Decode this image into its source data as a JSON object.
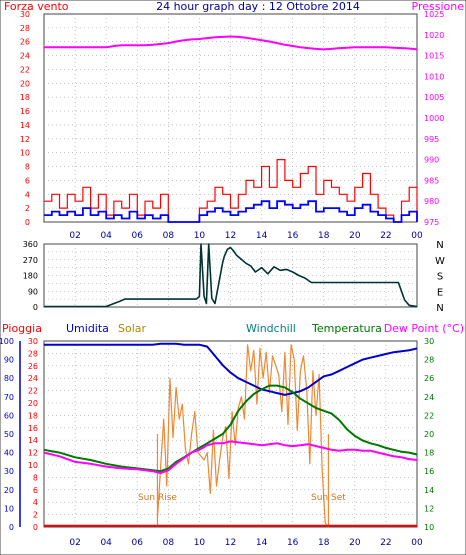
{
  "title": "24 hour graph day : 12 Ottobre 2014",
  "colors": {
    "wind": "#ff0000",
    "wind_avg": "#0000ff",
    "pressure": "#ff00ff",
    "direction": "#003333",
    "rain": "#ff0000",
    "humidity": "#0000cc",
    "solar": "#ee8833",
    "windchill": "#008080",
    "temperature": "#007700",
    "dewpoint": "#ff00ff",
    "grid": "#9aa0a0",
    "axis_labels": "#000099"
  },
  "x_ticks": [
    "02",
    "04",
    "06",
    "08",
    "10",
    "12",
    "14",
    "16",
    "18",
    "20",
    "22",
    "00"
  ],
  "chart_data": [
    {
      "type": "line",
      "name": "wind-pressure",
      "left_axis": {
        "label": "Forza vento",
        "min": 0,
        "max": 30,
        "ticks": [
          0,
          2,
          4,
          6,
          8,
          10,
          12,
          14,
          16,
          18,
          20,
          22,
          24,
          26,
          28,
          30
        ]
      },
      "right_axis": {
        "label": "Pressione",
        "min": 975,
        "max": 1025,
        "ticks": [
          975,
          980,
          985,
          990,
          995,
          1000,
          1005,
          1010,
          1015,
          1020,
          1025
        ]
      },
      "x": [
        0,
        0.5,
        1,
        1.5,
        2,
        2.5,
        3,
        3.5,
        4,
        4.5,
        5,
        5.5,
        6,
        6.5,
        7,
        7.5,
        8,
        8.5,
        9,
        9.5,
        10,
        10.5,
        11,
        11.5,
        12,
        12.5,
        13,
        13.5,
        14,
        14.5,
        15,
        15.5,
        16,
        16.5,
        17,
        17.5,
        18,
        18.5,
        19,
        19.5,
        20,
        20.5,
        21,
        21.5,
        22,
        22.5,
        23,
        23.5,
        24
      ],
      "series": [
        {
          "axis": "left",
          "color_key": "wind",
          "values": [
            3,
            4,
            2,
            4,
            3,
            5,
            2,
            4,
            1,
            3,
            2,
            4,
            1,
            3,
            2,
            4,
            0,
            0,
            0,
            0,
            2,
            3,
            5,
            4,
            2,
            4,
            6,
            5,
            8,
            5,
            9,
            6,
            5,
            7,
            8,
            4,
            6,
            5,
            4,
            3,
            5,
            7,
            4,
            2,
            1,
            0,
            3,
            5,
            0
          ]
        },
        {
          "axis": "left",
          "color_key": "wind_avg",
          "values": [
            1,
            1.5,
            1,
            1.5,
            1,
            2,
            1,
            1.5,
            0.5,
            1,
            0.5,
            1.5,
            0.5,
            1,
            0.5,
            1,
            0,
            0,
            0,
            0,
            1,
            1.5,
            2,
            1.5,
            1,
            1.5,
            2,
            2.5,
            3,
            2,
            3,
            2.5,
            2,
            2.5,
            3,
            1.5,
            2,
            2,
            1.5,
            1,
            2,
            2.5,
            1.5,
            1,
            0.5,
            0,
            1,
            1.5,
            0
          ]
        },
        {
          "axis": "right",
          "color_key": "pressure",
          "values": [
            1017,
            1017,
            1017,
            1017,
            1017,
            1017,
            1017,
            1017,
            1017,
            1017.3,
            1017.5,
            1017.5,
            1017.5,
            1017.5,
            1017.6,
            1017.8,
            1018,
            1018.4,
            1018.7,
            1018.9,
            1019,
            1019.2,
            1019.4,
            1019.5,
            1019.6,
            1019.5,
            1019.3,
            1019,
            1018.7,
            1018.4,
            1018,
            1017.6,
            1017.3,
            1017,
            1016.8,
            1016.6,
            1016.5,
            1016.6,
            1016.8,
            1016.9,
            1017,
            1017,
            1017,
            1017,
            1017,
            1016.9,
            1016.8,
            1016.7,
            1016.5
          ]
        }
      ]
    },
    {
      "type": "line",
      "name": "wind-direction",
      "left_axis": {
        "min": 0,
        "max": 360,
        "ticks": [
          0,
          45,
          90,
          135,
          180,
          225,
          270,
          315,
          360
        ]
      },
      "right_labels": [
        "N",
        "W",
        "S",
        "E",
        "N"
      ],
      "x": [
        0,
        0.5,
        1,
        2,
        3,
        4,
        4.8,
        5.2,
        6,
        7,
        8,
        9,
        9.6,
        9.8,
        10,
        10.1,
        10.3,
        10.45,
        10.6,
        10.8,
        11,
        11.5,
        11.6,
        11.8,
        12,
        12.2,
        12.4,
        12.6,
        13,
        13.3,
        13.6,
        14,
        14.4,
        14.8,
        15.2,
        15.6,
        16,
        16.4,
        16.8,
        17.2,
        18,
        19,
        20,
        21,
        22,
        22.8,
        23.2,
        23.5,
        24
      ],
      "series": [
        {
          "color_key": "direction",
          "values": [
            3,
            3,
            3,
            3,
            3,
            3,
            30,
            45,
            45,
            45,
            45,
            45,
            45,
            45,
            60,
            360,
            60,
            20,
            360,
            50,
            20,
            255,
            290,
            330,
            340,
            320,
            295,
            280,
            250,
            235,
            200,
            225,
            190,
            230,
            210,
            215,
            200,
            180,
            165,
            140,
            140,
            140,
            140,
            140,
            140,
            140,
            40,
            10,
            3
          ]
        }
      ]
    },
    {
      "type": "line",
      "name": "rain-humidity-solar-temperature",
      "axes": {
        "rain": {
          "label": "Pioggia",
          "min": 0,
          "max": 30,
          "ticks": [
            0,
            2,
            4,
            6,
            8,
            10,
            12,
            14,
            16,
            18,
            20,
            22,
            24,
            26,
            28,
            30
          ]
        },
        "humidity": {
          "label": "Umidita",
          "min": 0,
          "max": 100,
          "ticks": [
            0,
            10,
            20,
            30,
            40,
            50,
            60,
            70,
            80,
            90,
            100
          ]
        },
        "temperature": {
          "label": "Dew Point (°C)",
          "min": 10,
          "max": 30,
          "ticks": [
            10,
            12,
            14,
            16,
            18,
            20,
            22,
            24,
            26,
            28,
            30
          ]
        }
      },
      "legend": [
        "Pioggia",
        "Umidita",
        "Solar",
        "Windchill",
        "Temperatura",
        "Dew Point (°C)"
      ],
      "annotations": [
        {
          "text": "Sun Rise",
          "x": 7.3
        },
        {
          "text": "Sun Set",
          "x": 18.3
        }
      ],
      "x": [
        0,
        1,
        2,
        3,
        4,
        5,
        6,
        7,
        7.5,
        8,
        8.5,
        9,
        9.5,
        10,
        10.5,
        11,
        11.5,
        12,
        12.5,
        13,
        13.5,
        14,
        14.5,
        15,
        15.5,
        16,
        16.5,
        17,
        17.5,
        18,
        18.5,
        19,
        19.5,
        20,
        20.5,
        21,
        21.5,
        22,
        22.5,
        23,
        23.5,
        24
      ],
      "series": [
        {
          "axis": "humidity",
          "color_key": "humidity",
          "values": [
            98,
            98,
            98,
            98,
            98,
            98,
            98,
            98,
            98.5,
            98.5,
            98.5,
            98,
            98,
            98,
            97,
            92,
            87,
            83,
            80,
            78,
            76,
            74,
            73,
            72,
            71,
            72,
            73,
            75,
            78,
            81,
            82,
            84,
            86,
            88,
            90,
            91,
            92,
            93,
            94,
            94.5,
            95,
            96
          ]
        },
        {
          "axis": "temperature",
          "color_key": "temperature",
          "values": [
            18.3,
            18,
            17.5,
            17.2,
            16.8,
            16.5,
            16.3,
            16.1,
            16,
            16.3,
            17,
            17.5,
            18,
            18.5,
            19,
            19.5,
            20,
            21,
            22.5,
            23.5,
            24.3,
            24.8,
            25.2,
            25.2,
            25,
            24.5,
            23.8,
            23.3,
            22.8,
            22.5,
            22.2,
            21.5,
            20.5,
            19.8,
            19.3,
            19,
            18.8,
            18.5,
            18.3,
            18.1,
            18,
            17.8
          ]
        },
        {
          "axis": "temperature",
          "color_key": "dewpoint",
          "values": [
            18,
            17.6,
            17,
            16.8,
            16.5,
            16.3,
            16.2,
            16,
            15.8,
            16.1,
            16.8,
            17.4,
            18,
            18.3,
            18.8,
            19,
            19,
            19.2,
            19.1,
            19,
            18.9,
            18.8,
            18.9,
            19,
            18.8,
            18.7,
            18.8,
            18.9,
            18.7,
            18.5,
            18.3,
            18.2,
            18.3,
            18.3,
            18.2,
            18.2,
            18,
            17.8,
            17.6,
            17.5,
            17.3,
            17.2
          ]
        },
        {
          "axis": "rain",
          "color_key": "rain",
          "values": [
            0.2,
            0.2,
            0.2,
            0.2,
            0.2,
            0.2,
            0.2,
            0.2,
            0.2,
            0.2,
            0.2,
            0.2,
            0.2,
            0.2,
            0.2,
            0.2,
            0.2,
            0.2,
            0.2,
            0.2,
            0.2,
            0.2,
            0.2,
            0.2,
            0.2,
            0.2,
            0.2,
            0.2,
            0.2,
            0.2,
            0.2,
            0.2,
            0.2,
            0.2,
            0.2,
            0.2,
            0.2,
            0.2,
            0.2,
            0.2,
            0.2,
            0.2
          ]
        }
      ],
      "solar": {
        "axis": "humidity",
        "color_key": "solar",
        "x": [
          7.3,
          7.5,
          7.7,
          7.9,
          8.1,
          8.3,
          8.5,
          8.7,
          8.9,
          9.1,
          9.3,
          9.5,
          9.7,
          9.9,
          10.1,
          10.3,
          10.5,
          10.7,
          10.9,
          11.1,
          11.3,
          11.5,
          11.7,
          11.9,
          12.1,
          12.3,
          12.5,
          12.7,
          12.9,
          13.1,
          13.3,
          13.5,
          13.7,
          13.9,
          14.1,
          14.3,
          14.5,
          14.7,
          14.9,
          15.1,
          15.3,
          15.5,
          15.7,
          15.9,
          16.1,
          16.3,
          16.5,
          16.7,
          16.9,
          17.1,
          17.3,
          17.5,
          17.7,
          17.9,
          18.1,
          18.3
        ],
        "values": [
          5,
          32,
          58,
          22,
          80,
          48,
          75,
          58,
          66,
          42,
          34,
          50,
          62,
          40,
          38,
          36,
          40,
          18,
          52,
          22,
          36,
          48,
          54,
          26,
          62,
          44,
          64,
          70,
          58,
          98,
          84,
          95,
          66,
          96,
          80,
          94,
          72,
          92,
          87,
          82,
          62,
          94,
          55,
          98,
          90,
          52,
          84,
          92,
          74,
          34,
          84,
          60,
          82,
          30,
          2,
          0
        ]
      }
    }
  ]
}
